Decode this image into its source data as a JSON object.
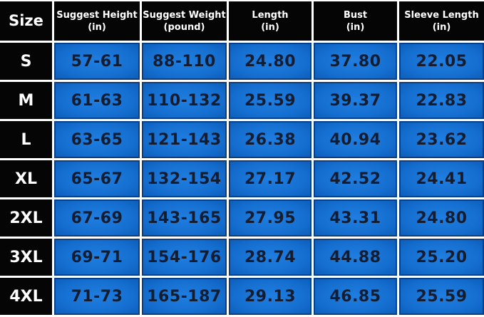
{
  "table": {
    "header": {
      "size": "Size",
      "columns": [
        {
          "name": "Suggest Height",
          "unit": "(in)"
        },
        {
          "name": "Suggest Weight",
          "unit": "(pound)"
        },
        {
          "name": "Length",
          "unit": "(in)"
        },
        {
          "name": "Bust",
          "unit": "(in)"
        },
        {
          "name": "Sleeve Length",
          "unit": "(in)"
        }
      ]
    },
    "rows": [
      [
        "S",
        "57-61",
        "88-110",
        "24.80",
        "37.80",
        "22.05"
      ],
      [
        "M",
        "61-63",
        "110-132",
        "25.59",
        "39.37",
        "22.83"
      ],
      [
        "L",
        "63-65",
        "121-143",
        "26.38",
        "40.94",
        "23.62"
      ],
      [
        "XL",
        "65-67",
        "132-154",
        "27.17",
        "42.52",
        "24.41"
      ],
      [
        "2XL",
        "67-69",
        "143-165",
        "27.95",
        "43.31",
        "24.80"
      ],
      [
        "3XL",
        "69-71",
        "154-176",
        "28.74",
        "44.88",
        "25.20"
      ],
      [
        "4XL",
        "71-73",
        "165-187",
        "29.13",
        "46.85",
        "25.59"
      ]
    ]
  }
}
